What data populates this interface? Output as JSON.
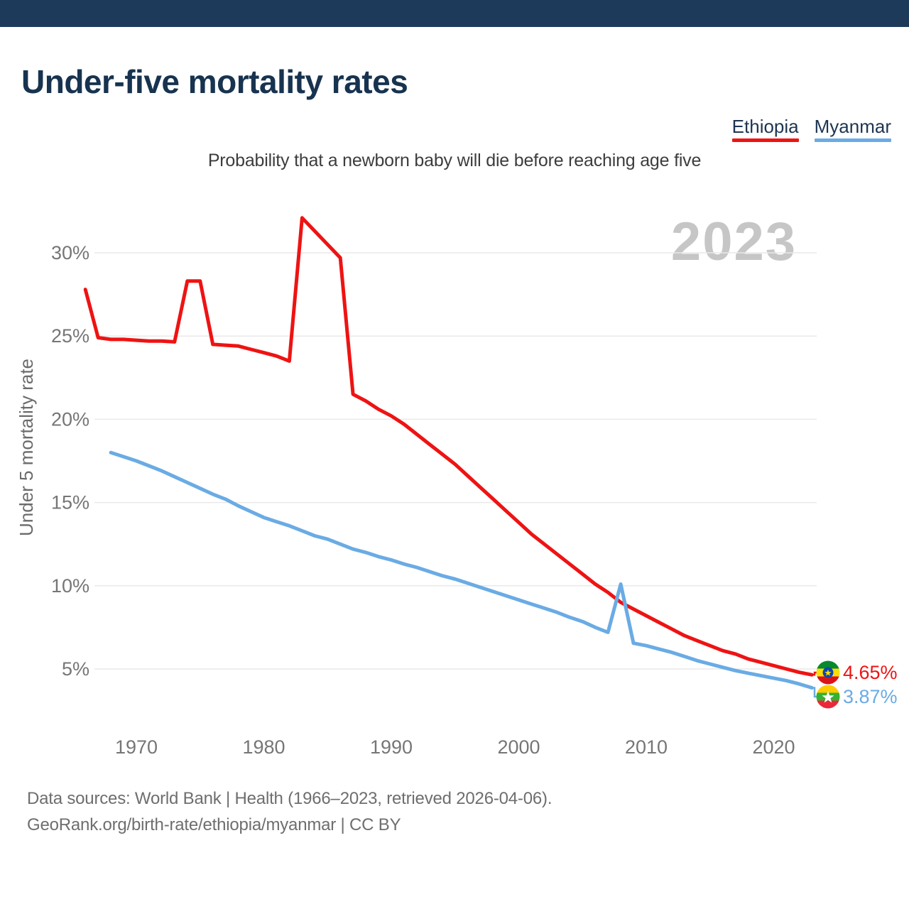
{
  "header": {
    "title": "Under-five mortality rates"
  },
  "legend": {
    "items": [
      {
        "label": "Ethiopia",
        "color": "#ee1313"
      },
      {
        "label": "Myanmar",
        "color": "#6aabe4"
      }
    ]
  },
  "chart_data": {
    "type": "line",
    "title": "Under-five mortality rates",
    "subtitle": "Probability that a newborn baby will die before reaching age five",
    "ylabel": "Under 5 mortality rate",
    "xlabel": "",
    "watermark": "2023",
    "grid": true,
    "legend_position": "top-right",
    "x_range": [
      1966,
      2023
    ],
    "ylim": [
      2.5,
      33.5
    ],
    "yticks": [
      {
        "value": 5,
        "label": "5%"
      },
      {
        "value": 10,
        "label": "10%"
      },
      {
        "value": 15,
        "label": "15%"
      },
      {
        "value": 20,
        "label": "20%"
      },
      {
        "value": 25,
        "label": "25%"
      },
      {
        "value": 30,
        "label": "30%"
      }
    ],
    "xticks": [
      {
        "value": 1970,
        "label": "1970"
      },
      {
        "value": 1980,
        "label": "1980"
      },
      {
        "value": 1990,
        "label": "1990"
      },
      {
        "value": 2000,
        "label": "2000"
      },
      {
        "value": 2010,
        "label": "2010"
      },
      {
        "value": 2020,
        "label": "2020"
      }
    ],
    "series": [
      {
        "name": "Ethiopia",
        "color": "#ee1313",
        "start_year": 1966,
        "end_label": "4.65%",
        "values": [
          27.8,
          24.9,
          24.8,
          24.8,
          24.75,
          24.7,
          24.7,
          24.65,
          28.3,
          28.3,
          24.5,
          24.45,
          24.4,
          24.2,
          24.0,
          23.8,
          23.5,
          32.1,
          31.3,
          30.5,
          29.7,
          21.5,
          21.1,
          20.6,
          20.2,
          19.7,
          19.1,
          18.5,
          17.9,
          17.3,
          16.6,
          15.9,
          15.2,
          14.5,
          13.8,
          13.1,
          12.5,
          11.9,
          11.3,
          10.7,
          10.1,
          9.6,
          9.0,
          8.6,
          8.2,
          7.8,
          7.4,
          7.0,
          6.7,
          6.4,
          6.1,
          5.9,
          5.6,
          5.4,
          5.2,
          5.0,
          4.8,
          4.65
        ]
      },
      {
        "name": "Myanmar",
        "color": "#6aabe4",
        "start_year": 1968,
        "end_label": "3.87%",
        "values": [
          18.0,
          17.75,
          17.5,
          17.2,
          16.9,
          16.55,
          16.2,
          15.85,
          15.5,
          15.2,
          14.8,
          14.45,
          14.1,
          13.85,
          13.6,
          13.3,
          13.0,
          12.8,
          12.5,
          12.2,
          12.0,
          11.75,
          11.55,
          11.3,
          11.1,
          10.85,
          10.6,
          10.4,
          10.15,
          9.9,
          9.65,
          9.4,
          9.15,
          8.9,
          8.65,
          8.4,
          8.1,
          7.85,
          7.5,
          7.2,
          10.1,
          6.55,
          6.4,
          6.2,
          6.0,
          5.75,
          5.5,
          5.3,
          5.1,
          4.9,
          4.75,
          4.6,
          4.45,
          4.3,
          4.1,
          3.87
        ]
      }
    ],
    "end_labels": {
      "ethiopia": "4.65%",
      "myanmar": "3.87%"
    }
  },
  "flags": {
    "ethiopia": {
      "stripes": [
        "#078930",
        "#fcdd09",
        "#da121a"
      ],
      "emblem_disc": "#0f47af",
      "emblem_star": "#fcdd09"
    },
    "myanmar": {
      "stripes": [
        "#fecb00",
        "#34b233",
        "#ea2839"
      ],
      "star": "#ffffff"
    }
  },
  "footer": {
    "line1": "Data sources: World Bank | Health (1966–2023, retrieved 2026-04-06).",
    "line2": "GeoRank.org/birth-rate/ethiopia/myanmar | CC BY"
  },
  "colors": {
    "topbar": "#1e3a5a",
    "title_text": "#17334f",
    "subtitle_text": "#3d3d3d",
    "tick_text": "#767676",
    "axis_title_text": "#6b6b6b",
    "gridline": "#e9e9e9",
    "watermark_text": "#c6c6c6",
    "footer_text": "#6e6e6e"
  }
}
